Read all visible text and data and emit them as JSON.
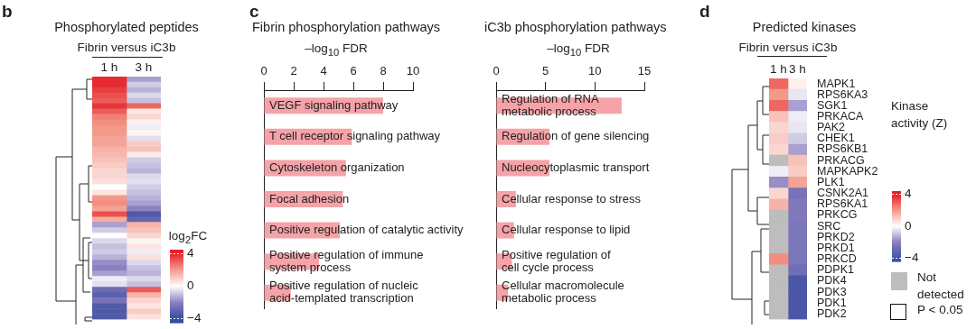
{
  "chart_data": [
    {
      "type": "heatmap",
      "title": "Phosphorylated peptides",
      "subtitle": "Fibrin versus iC3b",
      "clabel": "log$_{2}$FC",
      "annotations": [
        "b"
      ],
      "categories": [
        "1 h",
        "3 h"
      ],
      "y_categories": [
        null,
        null,
        null,
        null,
        null,
        null,
        null,
        null,
        null,
        null,
        null,
        null,
        null,
        null,
        null,
        null,
        null,
        null,
        null,
        null,
        null,
        null,
        null,
        null,
        null,
        null,
        null,
        null,
        null,
        null,
        null,
        null,
        null,
        null,
        null,
        null,
        null,
        null,
        null,
        null,
        null,
        null,
        null,
        null,
        null
      ],
      "cells": [
        [
          3.8,
          -1.5
        ],
        [
          3.8,
          -0.8
        ],
        [
          3.5,
          -1.2
        ],
        [
          3.2,
          -0.6
        ],
        [
          3.0,
          -1.0
        ],
        [
          3.6,
          2.8
        ],
        [
          3.0,
          0.5
        ],
        [
          2.4,
          0.8
        ],
        [
          2.2,
          0.3
        ],
        [
          2.0,
          -0.3
        ],
        [
          2.0,
          0.2
        ],
        [
          1.8,
          -0.5
        ],
        [
          1.8,
          1.0
        ],
        [
          1.5,
          1.2
        ],
        [
          1.4,
          0.4
        ],
        [
          1.2,
          -0.8
        ],
        [
          1.0,
          -1.0
        ],
        [
          0.8,
          -1.2
        ],
        [
          0.8,
          -0.6
        ],
        [
          0.6,
          -0.5
        ],
        [
          0.0,
          -0.8
        ],
        [
          0.5,
          -1.0
        ],
        [
          2.0,
          -1.2
        ],
        [
          2.2,
          -1.5
        ],
        [
          1.8,
          -2.0
        ],
        [
          3.2,
          -3.5
        ],
        [
          1.6,
          -3.0
        ],
        [
          -1.5,
          1.5
        ],
        [
          -0.8,
          1.2
        ],
        [
          0.0,
          0.8
        ],
        [
          -0.6,
          0.2
        ],
        [
          -1.0,
          0.5
        ],
        [
          -0.8,
          -0.3
        ],
        [
          -1.2,
          0.6
        ],
        [
          -1.8,
          -0.6
        ],
        [
          -2.0,
          -1.0
        ],
        [
          -1.5,
          -1.2
        ],
        [
          -0.3,
          -0.6
        ],
        [
          -0.5,
          -1.0
        ],
        [
          -2.8,
          3.0
        ],
        [
          -3.2,
          1.5
        ],
        [
          -2.5,
          0.8
        ],
        [
          -3.5,
          0.5
        ],
        [
          -3.5,
          1.0
        ],
        [
          -3.5,
          0.6
        ]
      ],
      "clim": [
        -4.5,
        4.5
      ],
      "cticks": [
        4,
        0,
        -4
      ]
    },
    {
      "type": "bar",
      "orientation": "horizontal",
      "title": "Fibrin phosphorylation pathways",
      "xlabel": "–log$_{10}$ FDR",
      "annotations": [
        "c"
      ],
      "categories": [
        "VEGF signaling pathway",
        "T cell receptor signaling pathway",
        "Cytoskeleton organization",
        "Focal adhesion",
        "Positive regulation of catalytic activity",
        "Positive regulation of immune\nsystem process",
        "Positive regulation of nucleic\nacid-templated transcription"
      ],
      "values": [
        8.0,
        5.9,
        5.5,
        5.3,
        5.1,
        3.7,
        1.8
      ],
      "color": "#f5a3a8",
      "xlim": [
        0,
        10
      ],
      "xticks": [
        0,
        2,
        4,
        6,
        8,
        10
      ]
    },
    {
      "type": "bar",
      "orientation": "horizontal",
      "title": "iC3b phosphorylation pathways",
      "xlabel": "–log$_{10}$ FDR",
      "categories": [
        "Regulation of RNA\nmetabolic process",
        "Regulation of gene silencing",
        "Nucleocytoplasmic transport",
        "Cellular response to stress",
        "Cellular response to lipid",
        "Positive regulation of\ncell cycle process",
        "Cellular macromolecule\nmetabolic process"
      ],
      "values": [
        12.7,
        5.4,
        5.4,
        2.0,
        1.8,
        1.6,
        1.2
      ],
      "color": "#f5a3a8",
      "xlim": [
        0,
        15
      ],
      "xticks": [
        0,
        5,
        10,
        15
      ]
    },
    {
      "type": "heatmap",
      "title": "Predicted kinases",
      "subtitle": "Fibrin versus iC3b",
      "clabel": "Kinase activity (Z)",
      "annotations": [
        "d",
        "Not detected",
        "P < 0.05"
      ],
      "categories": [
        "1 h",
        "3 h"
      ],
      "y_categories": [
        "MAPK1",
        "RPS6KA3",
        "SGK1",
        "PRKACA",
        "PAK2",
        "CHEK1",
        "RPS6KB1",
        "PRKACG",
        "MAPKAPK2",
        "PLK1",
        "CSNK2A1",
        "RPS6KA1",
        "PRKCG",
        "SRC",
        "PRKD2",
        "PRKD1",
        "PRKCD",
        "PDPK1",
        "PDK4",
        "PDK3",
        "PDK1",
        "PDK2"
      ],
      "cells": [
        [
          2.8,
          0.3
        ],
        [
          2.0,
          -0.4
        ],
        [
          2.8,
          -1.5
        ],
        [
          1.2,
          -0.3
        ],
        [
          0.8,
          -0.4
        ],
        [
          1.0,
          -0.8
        ],
        [
          0.8,
          -1.5
        ],
        [
          null,
          1.2
        ],
        [
          -0.3,
          1.0
        ],
        [
          -1.8,
          1.8
        ],
        [
          0.8,
          -2.5
        ],
        [
          1.5,
          -2.3
        ],
        [
          null,
          -2.3
        ],
        [
          null,
          -2.4
        ],
        [
          null,
          -2.4
        ],
        [
          null,
          -2.4
        ],
        [
          2.2,
          -2.4
        ],
        [
          null,
          -2.7
        ],
        [
          null,
          -3.6
        ],
        [
          null,
          -3.6
        ],
        [
          null,
          -3.6
        ],
        [
          null,
          -3.6
        ]
      ],
      "clim": [
        -4.4,
        4.4
      ],
      "cticks": [
        4,
        0,
        -4
      ]
    }
  ]
}
